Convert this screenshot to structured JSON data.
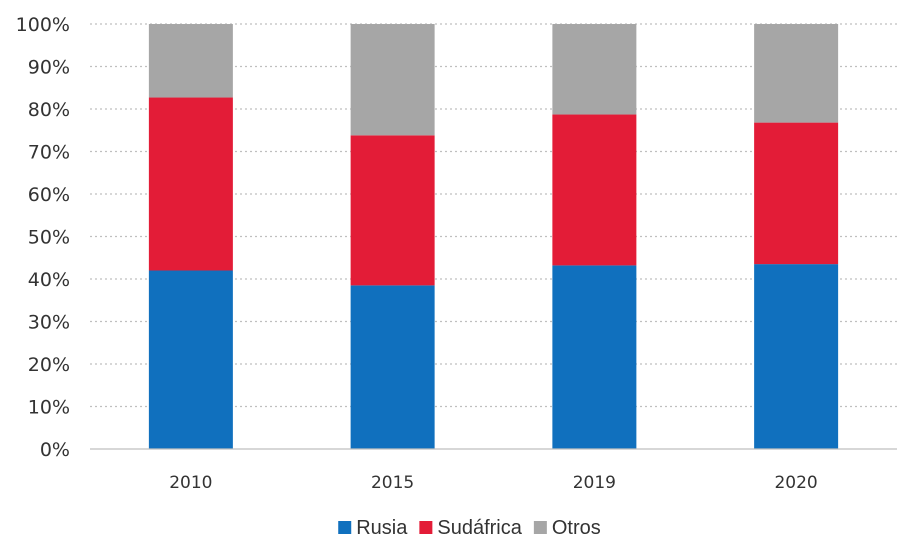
{
  "chart_data": {
    "type": "bar",
    "stacked": true,
    "percent_stacked": true,
    "title": "",
    "xlabel": "",
    "ylabel": "",
    "categories": [
      "2010",
      "2015",
      "2019",
      "2020"
    ],
    "series": [
      {
        "name": "Rusia",
        "color": "#1070BE",
        "values": [
          42,
          38.5,
          43.2,
          43.5
        ]
      },
      {
        "name": "Sudáfrica",
        "color": "#E31C37",
        "values": [
          40.7,
          35.3,
          35.5,
          33.3
        ]
      },
      {
        "name": "Otros",
        "color": "#A6A6A6",
        "values": [
          17.3,
          26.2,
          21.3,
          23.2
        ]
      }
    ],
    "ylim": [
      0,
      100
    ],
    "yticks": [
      "0%",
      "10%",
      "20%",
      "30%",
      "40%",
      "50%",
      "60%",
      "70%",
      "80%",
      "90%",
      "100%"
    ],
    "grid": true,
    "legend_position": "bottom-center"
  }
}
